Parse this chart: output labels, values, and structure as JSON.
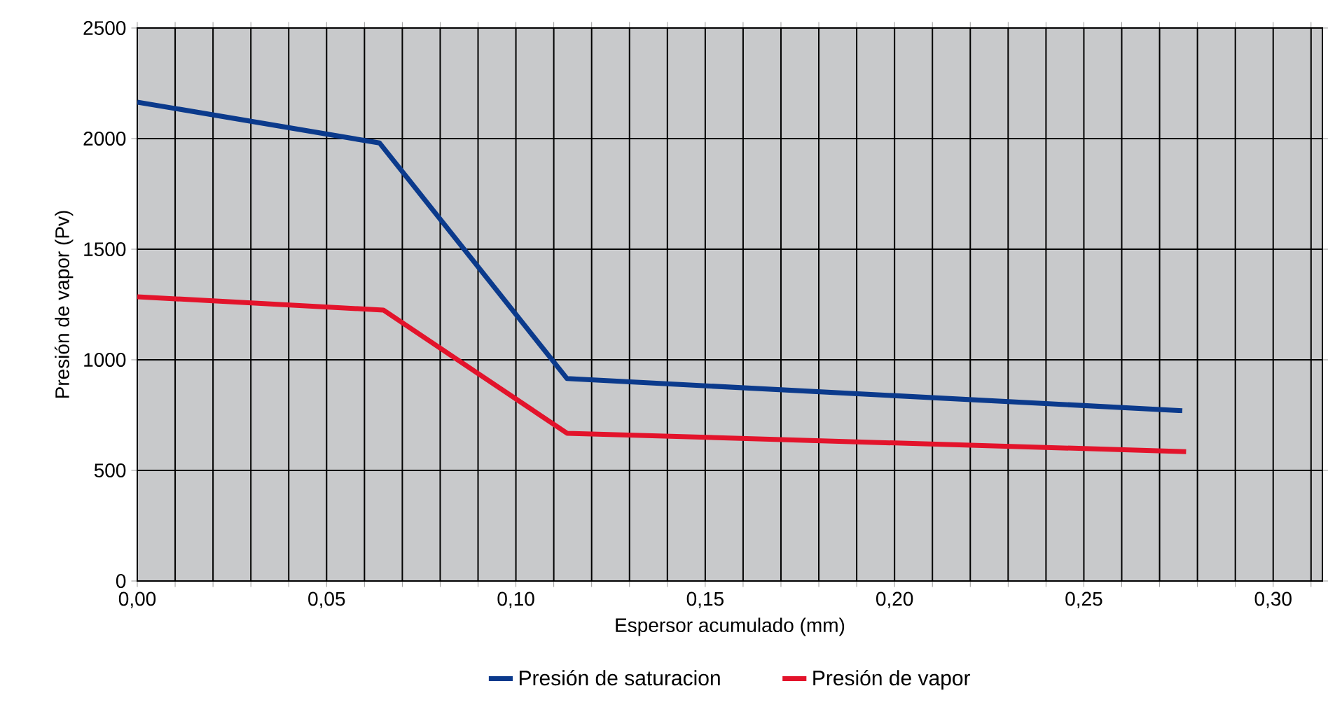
{
  "chart_data": {
    "type": "line",
    "xlabel": "Espersor acumulado (mm)",
    "ylabel": "Presión de vapor (Pv)",
    "xlim": [
      0,
      0.313
    ],
    "ylim": [
      0,
      2500
    ],
    "xticks": [
      {
        "value": 0,
        "label": "0,00"
      },
      {
        "value": 0.01,
        "label": null
      },
      {
        "value": 0.02,
        "label": null
      },
      {
        "value": 0.03,
        "label": null
      },
      {
        "value": 0.04,
        "label": null
      },
      {
        "value": 0.05,
        "label": "0,05"
      },
      {
        "value": 0.06,
        "label": null
      },
      {
        "value": 0.07,
        "label": null
      },
      {
        "value": 0.08,
        "label": null
      },
      {
        "value": 0.09,
        "label": null
      },
      {
        "value": 0.1,
        "label": "0,10"
      },
      {
        "value": 0.11,
        "label": null
      },
      {
        "value": 0.12,
        "label": null
      },
      {
        "value": 0.13,
        "label": null
      },
      {
        "value": 0.14,
        "label": null
      },
      {
        "value": 0.15,
        "label": "0,15"
      },
      {
        "value": 0.16,
        "label": null
      },
      {
        "value": 0.17,
        "label": null
      },
      {
        "value": 0.18,
        "label": null
      },
      {
        "value": 0.19,
        "label": null
      },
      {
        "value": 0.2,
        "label": "0,20"
      },
      {
        "value": 0.21,
        "label": null
      },
      {
        "value": 0.22,
        "label": null
      },
      {
        "value": 0.23,
        "label": null
      },
      {
        "value": 0.24,
        "label": null
      },
      {
        "value": 0.25,
        "label": "0,25"
      },
      {
        "value": 0.26,
        "label": null
      },
      {
        "value": 0.27,
        "label": null
      },
      {
        "value": 0.28,
        "label": null
      },
      {
        "value": 0.29,
        "label": null
      },
      {
        "value": 0.3,
        "label": "0,30"
      },
      {
        "value": 0.31,
        "label": null
      }
    ],
    "yticks": [
      0,
      500,
      1000,
      1500,
      2000,
      2500
    ],
    "grid": true,
    "legend": "bottom",
    "marker": "none",
    "line_style": "solid",
    "series": [
      {
        "name": "Presión de saturacion",
        "color": "#0b3a8c",
        "x": [
          0,
          0.064,
          0.1135,
          0.276
        ],
        "values": [
          2165,
          1980,
          915,
          770
        ]
      },
      {
        "name": "Presión de vapor",
        "color": "#e3132b",
        "x": [
          0,
          0.065,
          0.1135,
          0.277
        ],
        "values": [
          1285,
          1225,
          668,
          585
        ]
      }
    ]
  }
}
